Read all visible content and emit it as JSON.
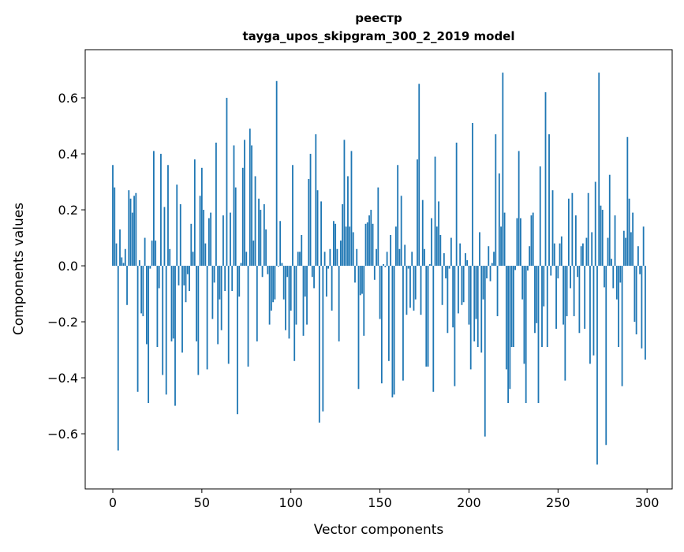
{
  "chart_data": {
    "type": "bar",
    "title": "реестр",
    "subtitle": "tayga_upos_skipgram_300_2_2019 model",
    "xlabel": "Vector components",
    "ylabel": "Components values",
    "xlim": [
      -15.5,
      314.1
    ],
    "ylim": [
      -0.797,
      0.772
    ],
    "xticks": [
      0,
      50,
      100,
      150,
      200,
      250,
      300
    ],
    "xtick_labels": [
      "0",
      "50",
      "100",
      "150",
      "200",
      "250",
      "300"
    ],
    "yticks": [
      -0.6,
      -0.4,
      -0.2,
      0.0,
      0.2,
      0.4,
      0.6
    ],
    "ytick_labels": [
      "−0.6",
      "−0.4",
      "−0.2",
      "0.0",
      "0.2",
      "0.4",
      "0.6"
    ],
    "grid": false,
    "bar_color": "#1f77b4",
    "bar_width": 0.8,
    "values": [
      0.36,
      0.28,
      0.08,
      -0.66,
      0.13,
      0.03,
      0.01,
      0.06,
      -0.14,
      0.27,
      0.24,
      0.19,
      0.25,
      0.26,
      -0.45,
      0.02,
      -0.17,
      -0.18,
      0.1,
      -0.28,
      -0.49,
      -0.01,
      0.09,
      0.41,
      0.09,
      -0.29,
      -0.08,
      0.4,
      -0.39,
      0.21,
      -0.46,
      0.36,
      0.06,
      -0.27,
      -0.26,
      -0.5,
      0.29,
      -0.07,
      0.22,
      -0.31,
      -0.07,
      -0.13,
      -0.03,
      -0.09,
      0.15,
      0.05,
      0.38,
      -0.27,
      -0.39,
      0.25,
      0.35,
      0.2,
      0.08,
      -0.37,
      0.17,
      0.19,
      -0.19,
      -0.06,
      0.44,
      -0.28,
      -0.12,
      -0.23,
      0.18,
      -0.09,
      0.6,
      -0.35,
      0.19,
      -0.09,
      0.43,
      0.28,
      -0.53,
      -0.11,
      0.01,
      0.35,
      0.45,
      0.05,
      -0.36,
      0.49,
      0.43,
      0.09,
      0.32,
      -0.27,
      0.24,
      0.2,
      -0.04,
      0.22,
      0.13,
      -0.03,
      -0.21,
      -0.16,
      -0.13,
      -0.12,
      0.66,
      -0.003,
      0.16,
      0.01,
      -0.12,
      -0.23,
      -0.04,
      -0.26,
      -0.16,
      0.36,
      -0.34,
      -0.21,
      0.05,
      0.05,
      0.11,
      -0.25,
      -0.11,
      -0.21,
      0.31,
      0.4,
      -0.04,
      -0.08,
      0.47,
      0.27,
      -0.56,
      0.23,
      -0.52,
      0.05,
      -0.11,
      -0.01,
      0.06,
      -0.16,
      0.16,
      0.15,
      0.06,
      -0.27,
      0.09,
      0.22,
      0.45,
      0.14,
      0.32,
      0.14,
      0.41,
      0.12,
      -0.06,
      0.06,
      -0.44,
      -0.105,
      -0.1,
      -0.25,
      0.15,
      0.155,
      0.18,
      0.2,
      0.15,
      -0.05,
      0.06,
      0.28,
      -0.19,
      -0.42,
      0.006,
      -0.005,
      0.05,
      -0.34,
      0.11,
      -0.47,
      -0.46,
      0.14,
      0.36,
      0.06,
      0.25,
      -0.41,
      0.075,
      -0.175,
      -0.01,
      -0.15,
      0.05,
      -0.16,
      -0.12,
      0.38,
      0.65,
      -0.175,
      0.235,
      0.06,
      -0.36,
      -0.36,
      0.006,
      0.17,
      -0.45,
      0.39,
      0.14,
      0.23,
      0.11,
      -0.14,
      0.045,
      -0.045,
      -0.24,
      -0.01,
      0.1,
      -0.22,
      -0.43,
      0.44,
      -0.17,
      0.08,
      -0.14,
      -0.13,
      0.045,
      0.02,
      -0.21,
      -0.37,
      0.51,
      -0.27,
      -0.19,
      -0.29,
      0.12,
      -0.31,
      -0.12,
      -0.61,
      -0.045,
      0.07,
      -0.055,
      0.01,
      0.05,
      0.47,
      -0.18,
      0.33,
      0.14,
      0.69,
      0.19,
      -0.37,
      -0.49,
      -0.44,
      -0.29,
      -0.29,
      -0.015,
      0.17,
      0.41,
      0.17,
      -0.12,
      -0.35,
      -0.49,
      -0.017,
      0.07,
      0.18,
      0.19,
      -0.24,
      -0.205,
      -0.49,
      0.355,
      -0.29,
      -0.145,
      0.62,
      -0.29,
      0.47,
      -0.035,
      0.27,
      0.08,
      -0.225,
      -0.045,
      0.08,
      0.105,
      -0.21,
      -0.41,
      -0.18,
      0.24,
      -0.08,
      0.26,
      -0.18,
      0.18,
      -0.04,
      -0.24,
      0.07,
      0.08,
      -0.225,
      0.1,
      0.26,
      -0.35,
      0.12,
      -0.32,
      0.3,
      -0.71,
      0.69,
      0.215,
      0.2,
      -0.077,
      -0.64,
      0.1,
      0.325,
      0.025,
      -0.08,
      0.18,
      -0.12,
      -0.29,
      -0.06,
      -0.43,
      0.125,
      0.1,
      0.46,
      0.24,
      0.12,
      0.19,
      -0.2,
      -0.245,
      0.07,
      -0.03,
      -0.295,
      0.14,
      -0.335
    ]
  }
}
